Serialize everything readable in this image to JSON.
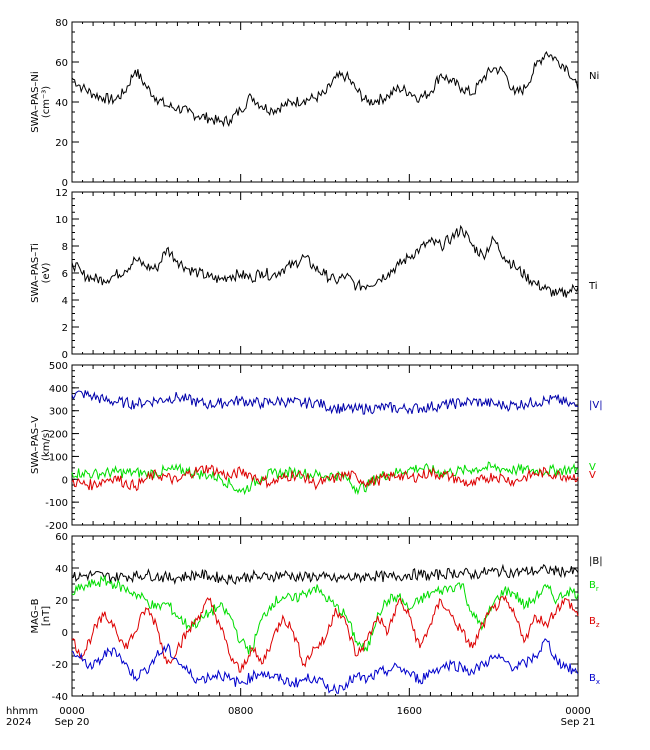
{
  "chart_data": [
    {
      "type": "line",
      "ylabel_lines": [
        "SWA–PAS–Ni",
        "(cm⁻³)"
      ],
      "ylim": [
        0,
        80
      ],
      "yticks": [
        0,
        20,
        40,
        60,
        80
      ],
      "series": [
        {
          "name": "Ni",
          "color": "#000000",
          "x": [
            0.0,
            0.5,
            1.0,
            1.5,
            2.0,
            2.5,
            3.0,
            3.5,
            4.0,
            4.5,
            5.0,
            5.5,
            6.0,
            6.5,
            7.0,
            7.5,
            8.0,
            8.5,
            9.0,
            9.5,
            10.0,
            10.5,
            11.0,
            11.5,
            12.0,
            12.5,
            13.0,
            13.5,
            14.0,
            14.5,
            15.0,
            15.5,
            16.0,
            16.5,
            17.0,
            17.5,
            18.0,
            18.5,
            19.0,
            19.5,
            20.0,
            20.5,
            21.0,
            21.5,
            22.0,
            22.5,
            23.0,
            23.5,
            24.0
          ],
          "values": [
            52,
            47,
            44,
            42,
            41,
            45,
            56,
            48,
            42,
            38,
            37,
            35,
            33,
            32,
            30,
            31,
            36,
            43,
            38,
            36,
            38,
            40,
            41,
            42,
            44,
            52,
            53,
            46,
            40,
            41,
            43,
            47,
            45,
            42,
            45,
            54,
            50,
            47,
            44,
            52,
            57,
            55,
            44,
            47,
            58,
            65,
            61,
            57,
            46
          ]
        }
      ]
    },
    {
      "type": "line",
      "ylabel_lines": [
        "SWA–PAS–Ti",
        "(eV)"
      ],
      "ylim": [
        0,
        12
      ],
      "yticks": [
        0,
        2,
        4,
        6,
        8,
        10,
        12
      ],
      "series": [
        {
          "name": "Ti",
          "color": "#000000",
          "x": [
            0.0,
            0.5,
            1.0,
            1.5,
            2.0,
            2.5,
            3.0,
            3.5,
            4.0,
            4.5,
            5.0,
            5.5,
            6.0,
            6.5,
            7.0,
            7.5,
            8.0,
            8.5,
            9.0,
            9.5,
            10.0,
            10.5,
            11.0,
            11.5,
            12.0,
            12.5,
            13.0,
            13.5,
            14.0,
            14.5,
            15.0,
            15.5,
            16.0,
            16.5,
            17.0,
            17.5,
            18.0,
            18.5,
            19.0,
            19.5,
            20.0,
            20.5,
            21.0,
            21.5,
            22.0,
            22.5,
            23.0,
            23.5,
            24.0
          ],
          "values": [
            6.8,
            5.9,
            5.6,
            5.5,
            5.8,
            6.2,
            7.0,
            6.5,
            6.3,
            7.8,
            6.9,
            6.3,
            6.0,
            5.7,
            5.5,
            5.8,
            5.9,
            5.6,
            6.1,
            5.8,
            6.3,
            6.6,
            7.2,
            6.4,
            5.9,
            5.4,
            5.8,
            5.0,
            5.1,
            5.5,
            6.0,
            6.6,
            7.2,
            7.8,
            8.3,
            8.0,
            8.6,
            9.3,
            8.0,
            7.3,
            8.5,
            7.2,
            6.5,
            5.8,
            5.2,
            4.8,
            4.4,
            4.6,
            5.0
          ]
        }
      ]
    },
    {
      "type": "line",
      "ylabel_lines": [
        "SWA–PAS–V",
        "(km/s)"
      ],
      "ylim": [
        -200,
        500
      ],
      "yticks": [
        -200,
        -100,
        0,
        100,
        200,
        300,
        400,
        500
      ],
      "series": [
        {
          "name": "|V|",
          "label_text": "|V|",
          "color": "#0000aa",
          "x": [
            0.0,
            0.5,
            1.0,
            1.5,
            2.0,
            2.5,
            3.0,
            3.5,
            4.0,
            4.5,
            5.0,
            5.5,
            6.0,
            6.5,
            7.0,
            7.5,
            8.0,
            8.5,
            9.0,
            9.5,
            10.0,
            10.5,
            11.0,
            11.5,
            12.0,
            12.5,
            13.0,
            13.5,
            14.0,
            14.5,
            15.0,
            15.5,
            16.0,
            16.5,
            17.0,
            17.5,
            18.0,
            18.5,
            19.0,
            19.5,
            20.0,
            20.5,
            21.0,
            21.5,
            22.0,
            22.5,
            23.0,
            23.5,
            24.0
          ],
          "values": [
            370,
            375,
            362,
            348,
            340,
            335,
            330,
            338,
            345,
            352,
            360,
            348,
            336,
            328,
            332,
            340,
            345,
            338,
            332,
            338,
            342,
            336,
            332,
            338,
            322,
            312,
            308,
            305,
            310,
            312,
            315,
            308,
            310,
            312,
            318,
            322,
            330,
            335,
            340,
            336,
            330,
            322,
            326,
            332,
            338,
            345,
            350,
            330,
            318
          ]
        },
        {
          "name": "Vx",
          "label_text": "V",
          "color": "#00dd00",
          "x": [
            0.0,
            0.5,
            1.0,
            1.5,
            2.0,
            2.5,
            3.0,
            3.5,
            4.0,
            4.5,
            5.0,
            5.5,
            6.0,
            6.5,
            7.0,
            7.5,
            8.0,
            8.5,
            9.0,
            9.5,
            10.0,
            10.5,
            11.0,
            11.5,
            12.0,
            12.5,
            13.0,
            13.5,
            14.0,
            14.5,
            15.0,
            15.5,
            16.0,
            16.5,
            17.0,
            17.5,
            18.0,
            18.5,
            19.0,
            19.5,
            20.0,
            20.5,
            21.0,
            21.5,
            22.0,
            22.5,
            23.0,
            23.5,
            24.0
          ],
          "values": [
            30,
            28,
            22,
            26,
            32,
            28,
            30,
            24,
            28,
            38,
            42,
            36,
            24,
            18,
            8,
            -20,
            -55,
            -25,
            10,
            24,
            28,
            30,
            26,
            20,
            15,
            18,
            8,
            -40,
            -30,
            12,
            22,
            32,
            44,
            50,
            40,
            30,
            32,
            38,
            44,
            50,
            52,
            46,
            40,
            42,
            38,
            36,
            40,
            42,
            44
          ]
        },
        {
          "name": "Vz",
          "label_text": "V",
          "color": "#dd0000",
          "x": [
            0.0,
            0.5,
            1.0,
            1.5,
            2.0,
            2.5,
            3.0,
            3.5,
            4.0,
            4.5,
            5.0,
            5.5,
            6.0,
            6.5,
            7.0,
            7.5,
            8.0,
            8.5,
            9.0,
            9.5,
            10.0,
            10.5,
            11.0,
            11.5,
            12.0,
            12.5,
            13.0,
            13.5,
            14.0,
            14.5,
            15.0,
            15.5,
            16.0,
            16.5,
            17.0,
            17.5,
            18.0,
            18.5,
            19.0,
            19.5,
            20.0,
            20.5,
            21.0,
            21.5,
            22.0,
            22.5,
            23.0,
            23.5,
            24.0
          ],
          "values": [
            -10,
            -20,
            -25,
            -5,
            10,
            -15,
            -30,
            0,
            20,
            10,
            -10,
            25,
            40,
            50,
            30,
            10,
            35,
            20,
            -5,
            -15,
            5,
            20,
            15,
            -20,
            -10,
            5,
            20,
            10,
            -15,
            -5,
            10,
            20,
            5,
            15,
            30,
            20,
            10,
            -10,
            -25,
            0,
            15,
            5,
            -10,
            10,
            25,
            30,
            20,
            15,
            10
          ]
        }
      ]
    },
    {
      "type": "line",
      "ylabel_lines": [
        "MAG–B",
        "[nT]"
      ],
      "ylim": [
        -40,
        60
      ],
      "yticks": [
        -40,
        -20,
        0,
        20,
        40,
        60
      ],
      "series": [
        {
          "name": "|B|",
          "label_text": "|B|",
          "color": "#000000",
          "x": [
            0.0,
            0.5,
            1.0,
            1.5,
            2.0,
            2.5,
            3.0,
            3.5,
            4.0,
            4.5,
            5.0,
            5.5,
            6.0,
            6.5,
            7.0,
            7.5,
            8.0,
            8.5,
            9.0,
            9.5,
            10.0,
            10.5,
            11.0,
            11.5,
            12.0,
            12.5,
            13.0,
            13.5,
            14.0,
            14.5,
            15.0,
            15.5,
            16.0,
            16.5,
            17.0,
            17.5,
            18.0,
            18.5,
            19.0,
            19.5,
            20.0,
            20.5,
            21.0,
            21.5,
            22.0,
            22.5,
            23.0,
            23.5,
            24.0
          ],
          "values": [
            34,
            35,
            36,
            35,
            34,
            35,
            35,
            36,
            35,
            34,
            34,
            35,
            36,
            35,
            34,
            33,
            34,
            35,
            34,
            35,
            36,
            35,
            34,
            35,
            34,
            33,
            34,
            34,
            35,
            35,
            34,
            35,
            36,
            36,
            35,
            36,
            37,
            37,
            36,
            37,
            38,
            38,
            37,
            38,
            38,
            39,
            38,
            38,
            37
          ]
        },
        {
          "name": "Br",
          "label_text": "B",
          "sub": "r",
          "color": "#00dd00",
          "x": [
            0.0,
            0.5,
            1.0,
            1.5,
            2.0,
            2.5,
            3.0,
            3.5,
            4.0,
            4.5,
            5.0,
            5.5,
            6.0,
            6.5,
            7.0,
            7.5,
            8.0,
            8.5,
            9.0,
            9.5,
            10.0,
            10.5,
            11.0,
            11.5,
            12.0,
            12.5,
            13.0,
            13.5,
            14.0,
            14.5,
            15.0,
            15.5,
            16.0,
            16.5,
            17.0,
            17.5,
            18.0,
            18.5,
            19.0,
            19.5,
            20.0,
            20.5,
            21.0,
            21.5,
            22.0,
            22.5,
            23.0,
            23.5,
            24.0
          ],
          "values": [
            24,
            28,
            30,
            32,
            30,
            27,
            24,
            20,
            15,
            18,
            10,
            4,
            6,
            12,
            16,
            10,
            -6,
            -12,
            8,
            18,
            22,
            20,
            24,
            28,
            22,
            16,
            10,
            -6,
            -12,
            12,
            20,
            22,
            14,
            20,
            24,
            26,
            28,
            30,
            10,
            4,
            18,
            26,
            24,
            16,
            22,
            28,
            20,
            26,
            24
          ]
        },
        {
          "name": "Bz",
          "label_text": "B",
          "sub": "z",
          "color": "#dd0000",
          "x": [
            0.0,
            0.5,
            1.0,
            1.5,
            2.0,
            2.5,
            3.0,
            3.5,
            4.0,
            4.5,
            5.0,
            5.5,
            6.0,
            6.5,
            7.0,
            7.5,
            8.0,
            8.5,
            9.0,
            9.5,
            10.0,
            10.5,
            11.0,
            11.5,
            12.0,
            12.5,
            13.0,
            13.5,
            14.0,
            14.5,
            15.0,
            15.5,
            16.0,
            16.5,
            17.0,
            17.5,
            18.0,
            18.5,
            19.0,
            19.5,
            20.0,
            20.5,
            21.0,
            21.5,
            22.0,
            22.5,
            23.0,
            23.5,
            24.0
          ],
          "values": [
            -5,
            -15,
            0,
            10,
            5,
            -10,
            0,
            15,
            5,
            -20,
            -10,
            0,
            10,
            20,
            5,
            -15,
            -25,
            -10,
            -20,
            -5,
            10,
            0,
            -20,
            -10,
            -5,
            15,
            5,
            -15,
            -5,
            10,
            0,
            20,
            10,
            -10,
            5,
            20,
            10,
            0,
            -10,
            5,
            15,
            20,
            10,
            -5,
            10,
            5,
            15,
            20,
            10
          ]
        },
        {
          "name": "Bx",
          "label_text": "B",
          "sub": "x",
          "color": "#0000cc",
          "x": [
            0.0,
            0.5,
            1.0,
            1.5,
            2.0,
            2.5,
            3.0,
            3.5,
            4.0,
            4.5,
            5.0,
            5.5,
            6.0,
            6.5,
            7.0,
            7.5,
            8.0,
            8.5,
            9.0,
            9.5,
            10.0,
            10.5,
            11.0,
            11.5,
            12.0,
            12.5,
            13.0,
            13.5,
            14.0,
            14.5,
            15.0,
            15.5,
            16.0,
            16.5,
            17.0,
            17.5,
            18.0,
            18.5,
            19.0,
            19.5,
            20.0,
            20.5,
            21.0,
            21.5,
            22.0,
            22.5,
            23.0,
            23.5,
            24.0
          ],
          "values": [
            -12,
            -18,
            -22,
            -15,
            -10,
            -20,
            -28,
            -24,
            -15,
            -10,
            -18,
            -25,
            -30,
            -28,
            -26,
            -30,
            -32,
            -28,
            -25,
            -28,
            -30,
            -32,
            -30,
            -28,
            -34,
            -36,
            -32,
            -28,
            -30,
            -26,
            -24,
            -22,
            -26,
            -30,
            -25,
            -22,
            -20,
            -22,
            -25,
            -20,
            -16,
            -18,
            -22,
            -20,
            -15,
            -5,
            -18,
            -22,
            -26
          ]
        }
      ]
    }
  ],
  "x_axis": {
    "label_row1": "hhmm",
    "label_row2": "2024",
    "ticks": [
      {
        "x": 0,
        "time": "0000",
        "date": "Sep 20"
      },
      {
        "x": 8,
        "time": "0800",
        "date": ""
      },
      {
        "x": 16,
        "time": "1600",
        "date": ""
      },
      {
        "x": 24,
        "time": "0000",
        "date": "Sep 21"
      }
    ]
  }
}
